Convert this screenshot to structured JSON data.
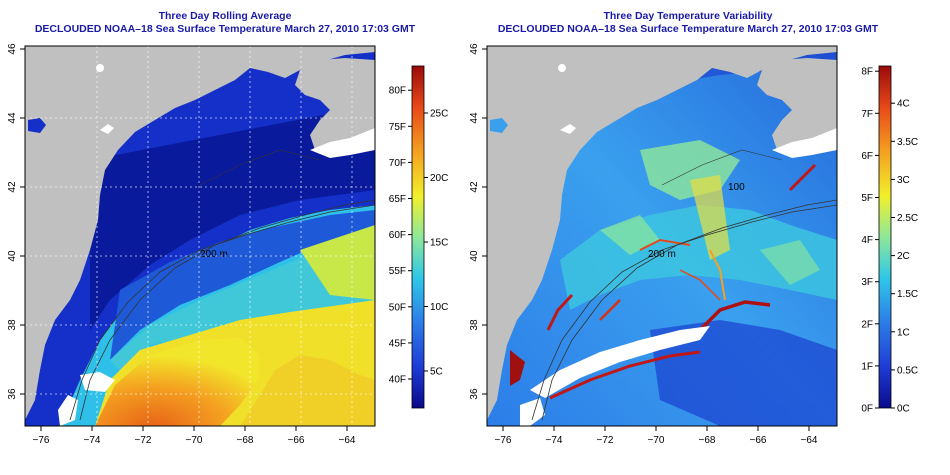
{
  "left_panel": {
    "title_line1": "Three Day Rolling Average",
    "title_line2": "DECLOUDED NOAA–18 Sea Surface Temperature March 27, 2010 17:03 GMT",
    "isobath_label": "200 m",
    "colorbar": {
      "f_labels": [
        "40F",
        "45F",
        "50F",
        "55F",
        "60F",
        "65F",
        "70F",
        "75F",
        "80F"
      ],
      "c_labels": [
        "5C",
        "10C",
        "15C",
        "20C",
        "25C"
      ],
      "colormap": [
        "#0a0a8c",
        "#1e3cd6",
        "#2c7de8",
        "#2ec7e8",
        "#8ee89a",
        "#f2f02a",
        "#f4a020",
        "#e84818",
        "#9a0a0a"
      ]
    }
  },
  "right_panel": {
    "title_line1": "Three Day Temperature Variability",
    "title_line2": "DECLOUDED NOAA–18 Sea Surface Temperature March 27, 2010 17:03 GMT",
    "isobath_label_200": "200 m",
    "isobath_label_100": "100",
    "colorbar": {
      "f_labels": [
        "0F",
        "1F",
        "2F",
        "3F",
        "4F",
        "5F",
        "6F",
        "7F",
        "8F"
      ],
      "c_labels": [
        "0C",
        "0.5C",
        "1C",
        "1.5C",
        "2C",
        "2.5C",
        "3C",
        "3.5C",
        "4C"
      ],
      "colormap": [
        "#0a0a8c",
        "#1e3cd6",
        "#2c7de8",
        "#2ec7e8",
        "#8ee89a",
        "#f2f02a",
        "#f4a020",
        "#e84818",
        "#9a0a0a"
      ]
    }
  },
  "axes": {
    "x_ticks": [
      "−76",
      "−74",
      "−72",
      "−70",
      "−68",
      "−66",
      "−64"
    ],
    "y_ticks": [
      "36",
      "38",
      "40",
      "42",
      "44",
      "46"
    ]
  },
  "colors": {
    "land": "#c0c0c0",
    "title": "#1a1aa8"
  }
}
